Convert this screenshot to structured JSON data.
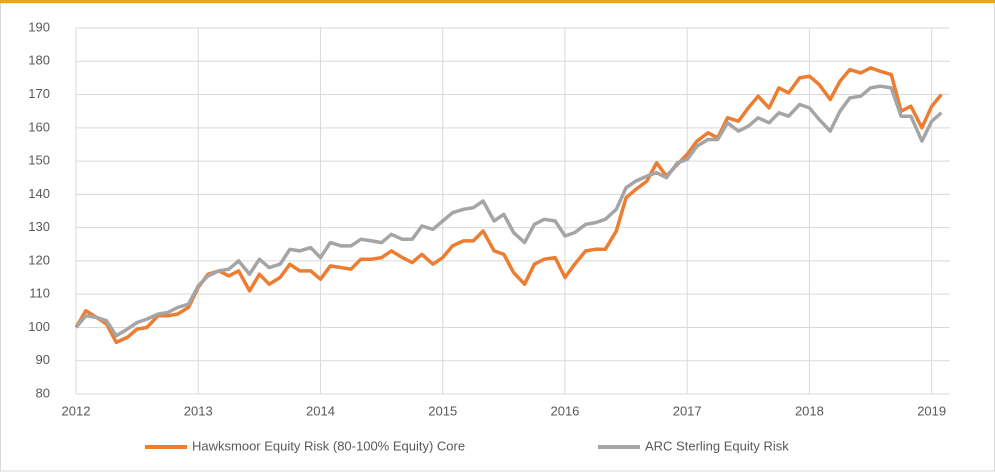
{
  "chart_data": {
    "type": "line",
    "x": [
      2012,
      2012.08,
      2012.17,
      2012.25,
      2012.33,
      2012.42,
      2012.5,
      2012.58,
      2012.67,
      2012.75,
      2012.83,
      2012.92,
      2013,
      2013.08,
      2013.17,
      2013.25,
      2013.33,
      2013.42,
      2013.5,
      2013.58,
      2013.67,
      2013.75,
      2013.83,
      2013.92,
      2014,
      2014.08,
      2014.17,
      2014.25,
      2014.33,
      2014.42,
      2014.5,
      2014.58,
      2014.67,
      2014.75,
      2014.83,
      2014.92,
      2015,
      2015.08,
      2015.17,
      2015.25,
      2015.33,
      2015.42,
      2015.5,
      2015.58,
      2015.67,
      2015.75,
      2015.83,
      2015.92,
      2016,
      2016.08,
      2016.17,
      2016.25,
      2016.33,
      2016.42,
      2016.5,
      2016.58,
      2016.67,
      2016.75,
      2016.83,
      2016.92,
      2017,
      2017.08,
      2017.17,
      2017.25,
      2017.33,
      2017.42,
      2017.5,
      2017.58,
      2017.67,
      2017.75,
      2017.83,
      2017.92,
      2018,
      2018.08,
      2018.17,
      2018.25,
      2018.33,
      2018.42,
      2018.5,
      2018.58,
      2018.67,
      2018.75,
      2018.83,
      2018.92,
      2019,
      2019.08
    ],
    "series": [
      {
        "name": "Hawksmoor Equity Risk (80-100% Equity) Core",
        "color": "#ed7d31",
        "values": [
          100,
          105,
          103,
          101,
          95.5,
          97,
          99.5,
          100,
          103.5,
          103.5,
          104,
          106,
          112,
          116,
          117,
          115.5,
          117,
          111,
          116,
          113,
          115,
          119,
          117,
          117,
          114.5,
          118.5,
          118,
          117.5,
          120.5,
          120.5,
          121,
          123,
          121,
          119.5,
          122,
          119,
          121,
          124.5,
          126,
          126,
          129,
          123,
          122,
          116.5,
          113,
          119,
          120.5,
          121,
          115,
          119,
          123,
          123.5,
          123.5,
          129,
          139,
          141.5,
          144,
          149.5,
          145.5,
          149,
          152,
          156,
          158.5,
          157,
          163,
          162,
          166,
          169.5,
          166,
          172,
          170.5,
          175,
          175.5,
          173,
          168.5,
          174,
          177.5,
          176.5,
          178,
          177,
          176,
          165,
          166.5,
          160,
          166.5,
          170
        ]
      },
      {
        "name": "ARC Sterling Equity Risk",
        "color": "#a5a5a5",
        "values": [
          100,
          103.5,
          103,
          102,
          97.5,
          99.5,
          101.5,
          102.5,
          104,
          104.5,
          106,
          107,
          112.5,
          115.5,
          117,
          117.5,
          120,
          116,
          120.5,
          118,
          119,
          123.5,
          123,
          124,
          121,
          125.5,
          124.5,
          124.5,
          126.5,
          126,
          125.5,
          128,
          126.5,
          126.5,
          130.5,
          129.5,
          132,
          134.5,
          135.5,
          136,
          138,
          132,
          134,
          128.5,
          125.5,
          131,
          132.5,
          132,
          127.5,
          128.5,
          131,
          131.5,
          132.5,
          135.5,
          142,
          144,
          145.5,
          146.5,
          145,
          149.5,
          150.5,
          154.5,
          156.5,
          156.5,
          161.5,
          159,
          160.5,
          163,
          161.5,
          164.5,
          163.5,
          167,
          166,
          162.5,
          159,
          165,
          169,
          169.5,
          172,
          172.5,
          172,
          163.5,
          163.5,
          156,
          162,
          164.5
        ]
      }
    ],
    "xlim": [
      2012,
      2019.15
    ],
    "xticks": [
      2012,
      2013,
      2014,
      2015,
      2016,
      2017,
      2018,
      2019
    ],
    "ylim": [
      80,
      190
    ],
    "yticks": [
      80,
      90,
      100,
      110,
      120,
      130,
      140,
      150,
      160,
      170,
      180,
      190
    ],
    "grid": true,
    "legend": "bottom"
  }
}
